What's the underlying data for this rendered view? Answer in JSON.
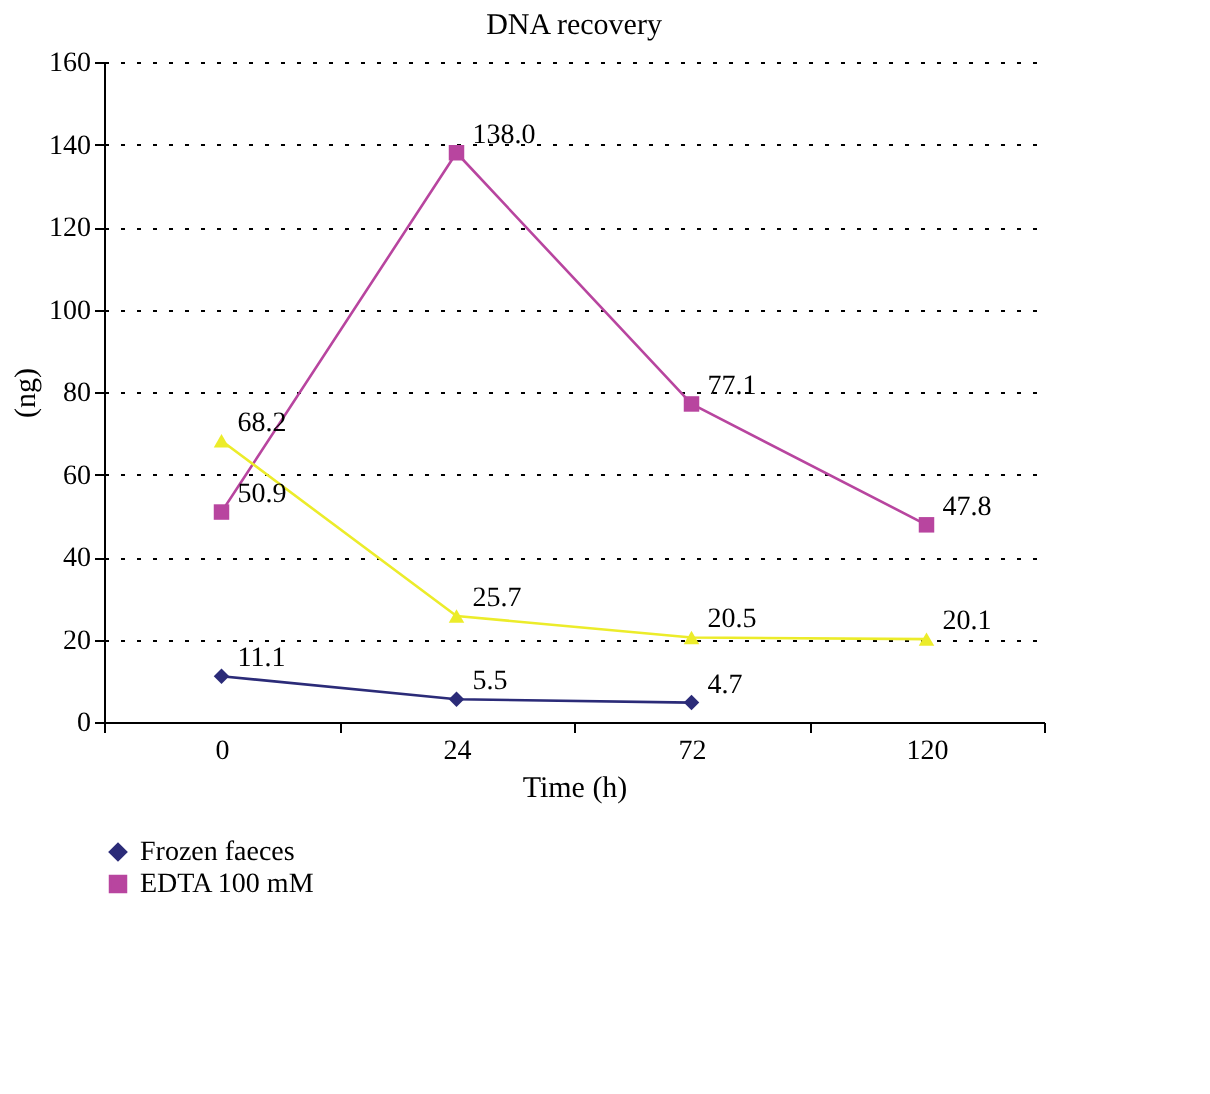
{
  "chart_data": {
    "type": "line",
    "title": "DNA recovery",
    "xlabel": "Time (h)",
    "ylabel": "(ng)",
    "categories": [
      "0",
      "24",
      "72",
      "120"
    ],
    "series": [
      {
        "name": "Frozen faeces",
        "color": "#2b2b78",
        "marker": "diamond",
        "values": [
          11.1,
          5.5,
          4.7,
          null
        ],
        "value_labels": [
          "11.1",
          "5.5",
          "4.7",
          null
        ]
      },
      {
        "name": "EDTA 100 mM",
        "color": "#b8459f",
        "marker": "square",
        "values": [
          50.9,
          138.0,
          77.1,
          47.8
        ],
        "value_labels": [
          "50.9",
          "138.0",
          "77.1",
          "47.8"
        ]
      },
      {
        "color": "#ecec2a",
        "marker": "triangle",
        "values": [
          68.2,
          25.7,
          20.5,
          20.1
        ],
        "value_labels": [
          "68.2",
          "25.7",
          "20.5",
          "20.1"
        ]
      }
    ],
    "ylim": [
      0,
      160
    ],
    "yticks": [
      0,
      20,
      40,
      60,
      80,
      100,
      120,
      140,
      160
    ],
    "grid": "y",
    "legend": "bottom",
    "line_style": "solid"
  }
}
